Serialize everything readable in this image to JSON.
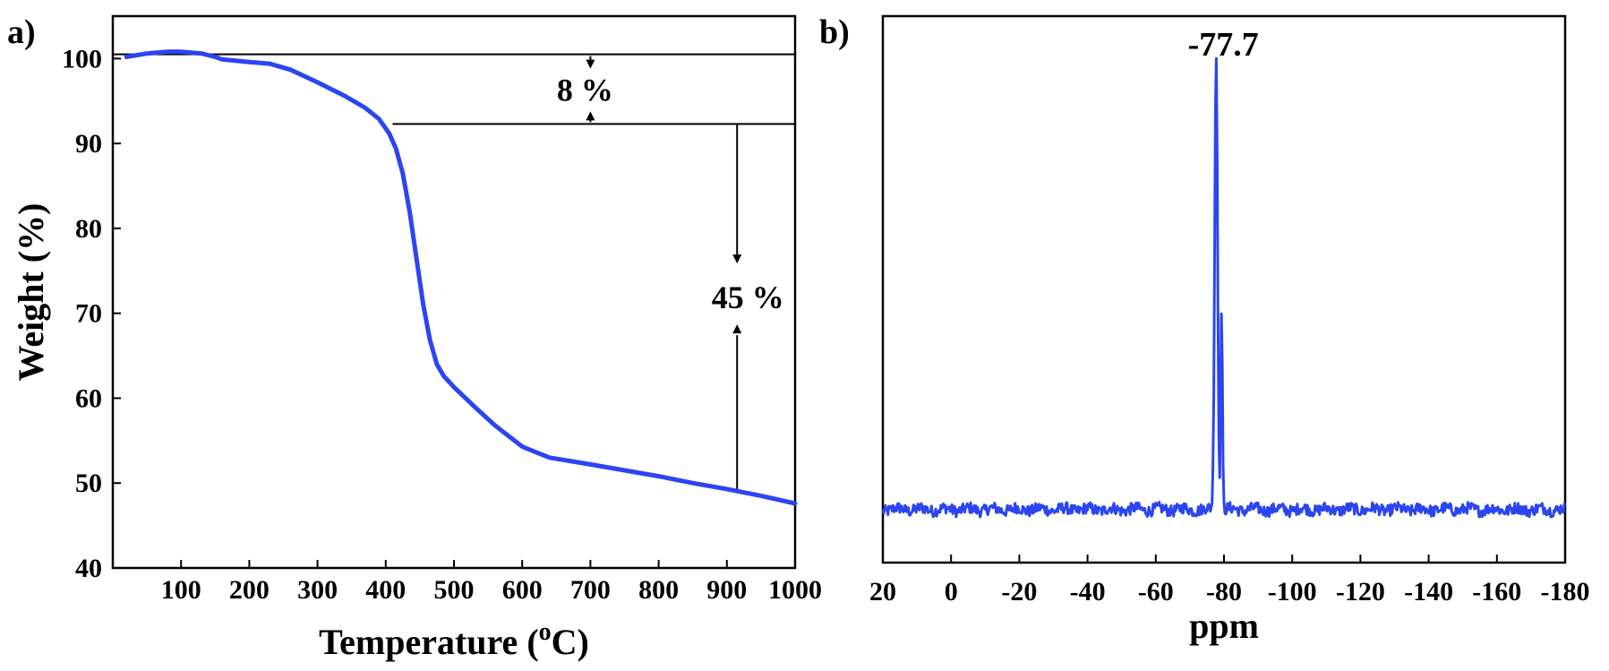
{
  "chart_data": [
    {
      "panel": "a)",
      "type": "line",
      "xlabel": "Temperature (",
      "xlabel_sup": "o",
      "xlabel_tail": "C)",
      "ylabel": "Weight (%)",
      "xlim": [
        0,
        1000
      ],
      "ylim": [
        40,
        105
      ],
      "x_ticks": [
        100,
        200,
        300,
        400,
        500,
        600,
        700,
        800,
        900,
        1000
      ],
      "y_ticks": [
        40,
        50,
        60,
        70,
        80,
        90,
        100
      ],
      "grid": false,
      "series_color": "#2b45f0",
      "series": [
        {
          "x": [
            20,
            50,
            80,
            100,
            130,
            150,
            160,
            200,
            230,
            260,
            300,
            340,
            370,
            390,
            405,
            415,
            425,
            435,
            445,
            455,
            465,
            475,
            485,
            500,
            530,
            560,
            600,
            615,
            640,
            700,
            750,
            800,
            850,
            900,
            950,
            1000
          ],
          "y": [
            100.2,
            100.6,
            100.8,
            100.8,
            100.6,
            100.2,
            99.9,
            99.6,
            99.4,
            98.7,
            97.2,
            95.6,
            94.2,
            92.9,
            91.2,
            89.4,
            86.5,
            82.0,
            76.5,
            71.0,
            66.8,
            64.0,
            62.6,
            61.3,
            59.0,
            56.8,
            54.3,
            53.8,
            53.0,
            52.2,
            51.5,
            50.8,
            50.0,
            49.3,
            48.5,
            47.6
          ]
        }
      ],
      "annotations": [
        {
          "text": "8 %",
          "from": 100.5,
          "to": 92.3,
          "x": 700
        },
        {
          "text": "45 %",
          "from": 92.3,
          "to": 49.3,
          "x": 915
        }
      ]
    },
    {
      "panel": "b)",
      "type": "line",
      "xlabel": "ppm",
      "ylabel": "",
      "xlim": [
        20,
        -180
      ],
      "x_ticks": [
        20,
        0,
        -20,
        -40,
        -60,
        -80,
        -100,
        -120,
        -140,
        -160,
        -180
      ],
      "y_ticks": [],
      "grid": false,
      "series_color": "#2b45f0",
      "baseline": 0.03,
      "peaks": [
        {
          "center": -77.7,
          "height": 1.0,
          "width": 0.6
        },
        {
          "center": -79.3,
          "height": 0.45,
          "width": 0.35
        }
      ],
      "peak_label": "-77.7"
    }
  ]
}
